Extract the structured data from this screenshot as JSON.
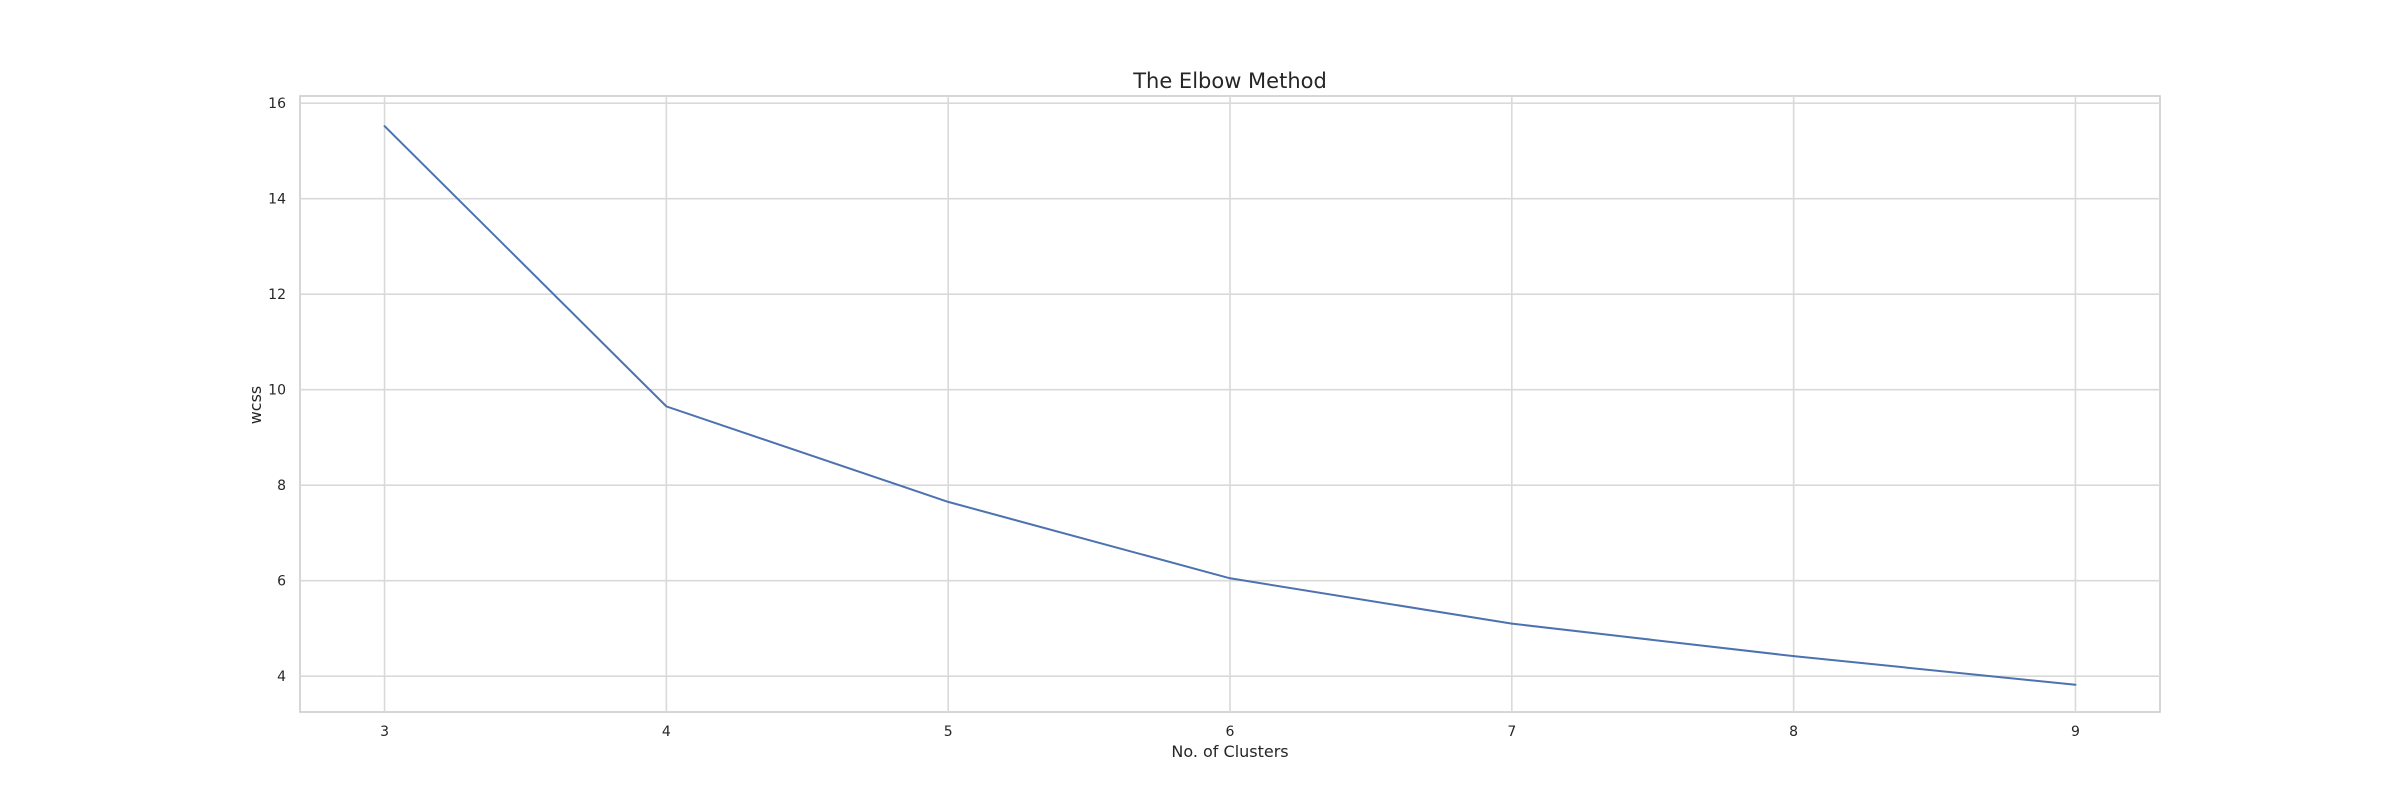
{
  "chart_data": {
    "type": "line",
    "title": "The Elbow Method",
    "xlabel": "No. of Clusters",
    "ylabel": "wcss",
    "x": [
      3,
      4,
      5,
      6,
      7,
      8,
      9
    ],
    "series": [
      {
        "values": [
          15.52,
          9.65,
          7.65,
          6.05,
          5.1,
          4.42,
          3.82
        ],
        "color": "#4c72b0"
      }
    ],
    "xlim": [
      2.7,
      9.3
    ],
    "ylim": [
      3.25,
      16.15
    ],
    "xticks": [
      "3",
      "4",
      "5",
      "6",
      "7",
      "8",
      "9"
    ],
    "yticks": [
      "4",
      "6",
      "8",
      "10",
      "12",
      "14",
      "16"
    ],
    "grid": true,
    "legend": "none"
  }
}
